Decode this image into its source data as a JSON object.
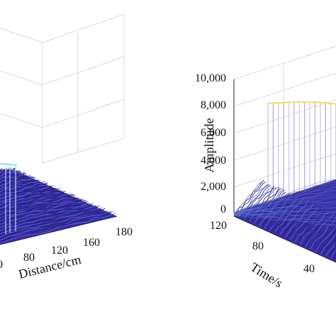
{
  "figure": {
    "colors": {
      "surface": "#3a2fa8",
      "surface_dark": "#241c7a",
      "surface_light": "#5a6fd0",
      "peak_line": "#e6e26a",
      "grid": "#d9d9d9",
      "axis": "#222222"
    }
  },
  "chart_data": [
    {
      "type": "surface",
      "panel": "left",
      "xlabel": "Distance/cm",
      "ylabel": "",
      "zlabel": "",
      "x_ticks": [
        "0",
        "80",
        "120",
        "160",
        "180"
      ],
      "x_range": [
        0,
        180
      ],
      "grid": true
    },
    {
      "type": "surface",
      "panel": "right",
      "xlabel": "Time/s",
      "zlabel": "Amplitude",
      "x_ticks": [
        "120",
        "80",
        "40"
      ],
      "z_ticks": [
        "0",
        "2,000",
        "4,000",
        "6,000",
        "8,000",
        "10,000"
      ],
      "z_range": [
        0,
        10000
      ],
      "grid": true,
      "peak_profile": {
        "time": [
          112,
          106,
          100,
          94,
          88,
          82,
          76,
          70,
          64,
          58,
          52,
          46,
          40,
          34
        ],
        "amplitude": [
          8200,
          8150,
          8080,
          8000,
          7980,
          7900,
          7820,
          7750,
          7660,
          7560,
          7450,
          7350,
          7200,
          7100
        ]
      }
    }
  ]
}
